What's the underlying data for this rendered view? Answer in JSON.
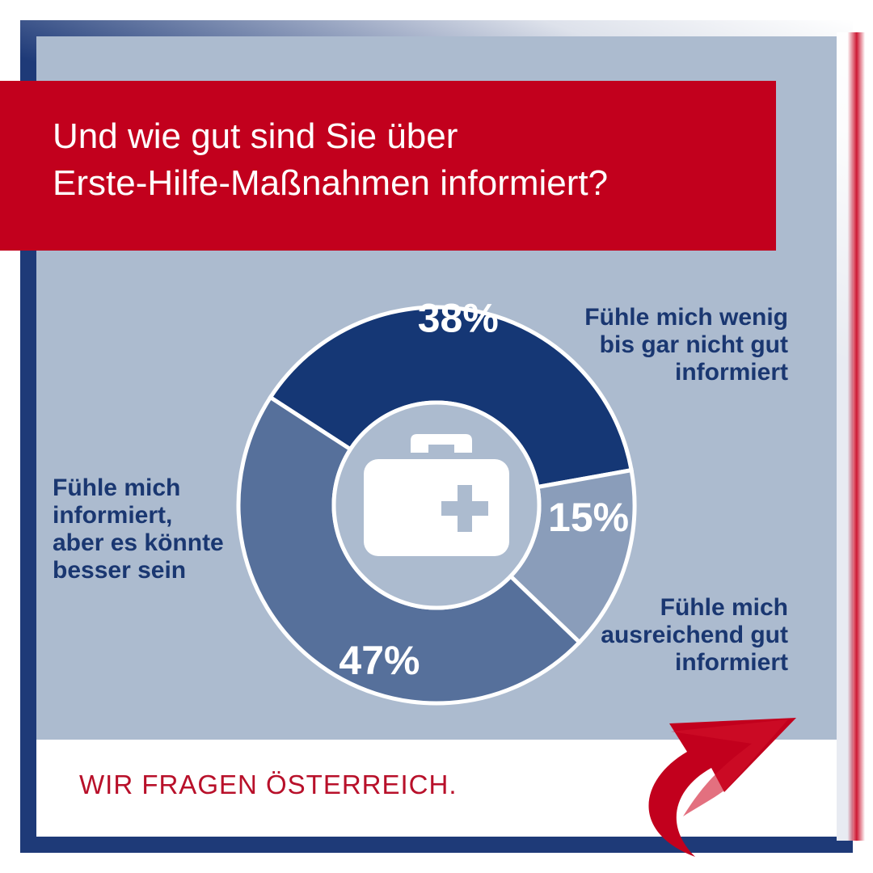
{
  "title_lines": [
    "Und wie gut sind Sie über",
    "Erste-Hilfe-Maßnahmen informiert?"
  ],
  "chart_data": {
    "type": "pie",
    "variant": "donut",
    "title": "Und wie gut sind Sie über Erste-Hilfe-Maßnahmen informiert?",
    "unit": "%",
    "slices": [
      {
        "label": "Fühle mich wenig bis gar nicht gut informiert",
        "value": 38,
        "value_label": "38%",
        "color": "#153775"
      },
      {
        "label": "Fühle mich ausreichend gut informiert",
        "value": 15,
        "value_label": "15%",
        "color": "#8a9dba"
      },
      {
        "label": "Fühle mich informiert, aber es könnte besser sein",
        "value": 47,
        "value_label": "47%",
        "color": "#56709b"
      }
    ],
    "center_icon": "first-aid-kit-icon"
  },
  "labels": {
    "wenig": [
      "Fühle mich wenig",
      "bis gar nicht gut",
      "informiert"
    ],
    "ausreichend": [
      "Fühle mich",
      "ausreichend gut",
      "informiert"
    ],
    "besser": [
      "Fühle mich",
      "informiert,",
      "aber es könnte",
      "besser sein"
    ]
  },
  "footer": {
    "text": "WIR FRAGEN ÖSTERREICH."
  },
  "logo_icon": "red-arrow-swoosh-logo",
  "colors": {
    "accent_red": "#c2001d",
    "frame_blue": "#1e3a78",
    "panel": "#acbbcf",
    "label_blue": "#1a3771"
  }
}
